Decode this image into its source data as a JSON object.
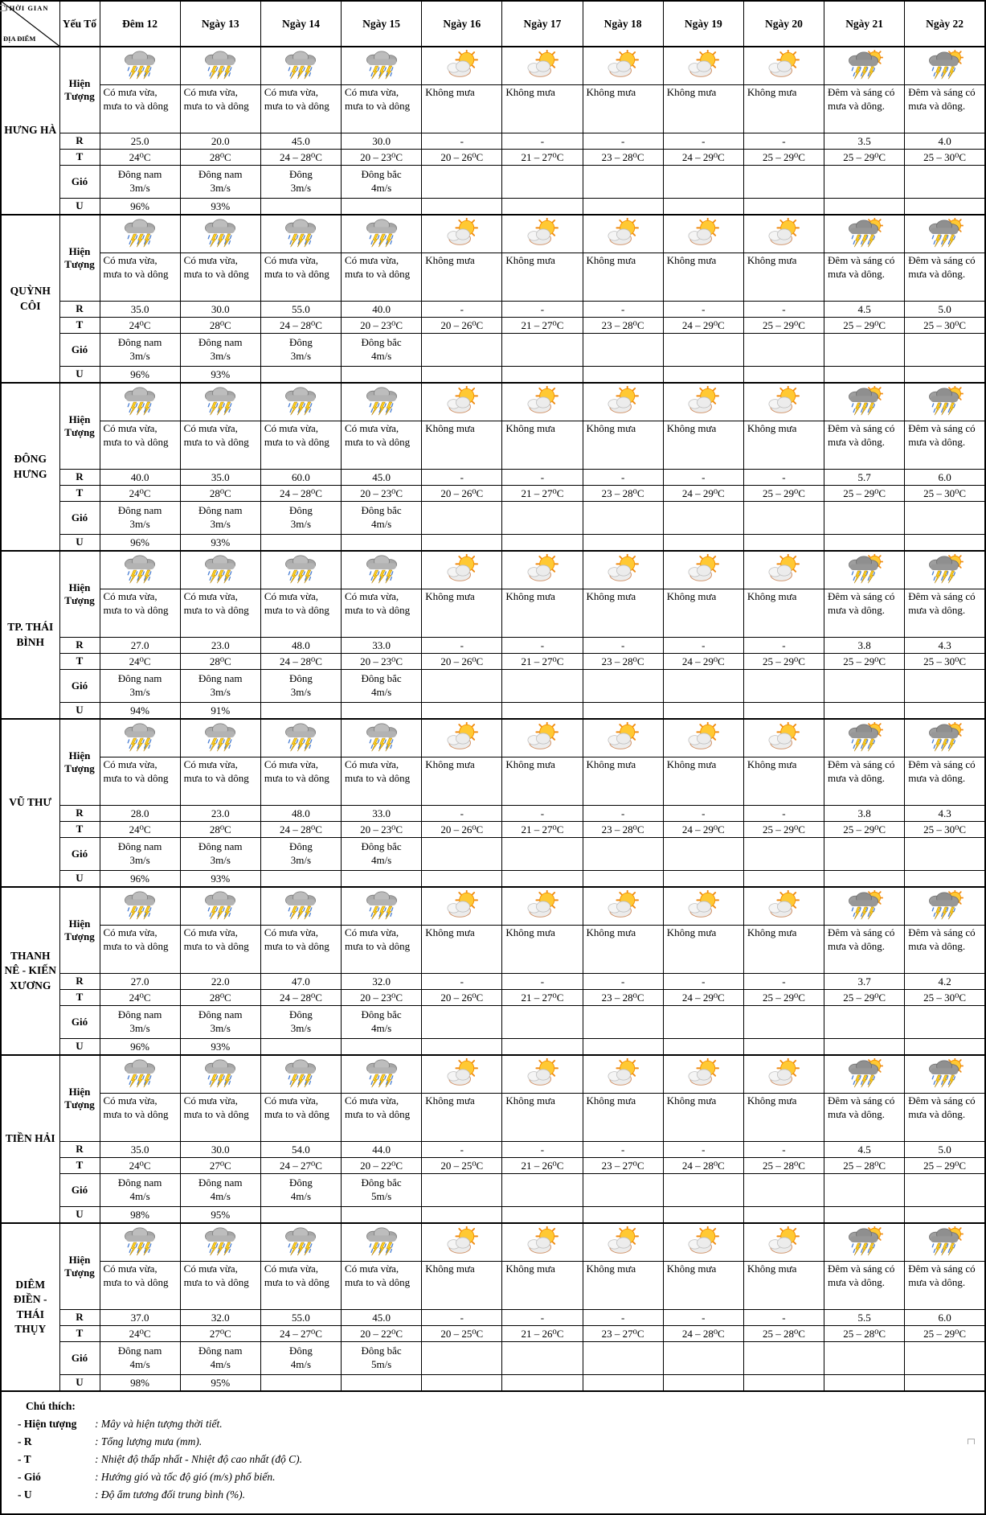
{
  "header": {
    "corner_top": "THỜI GIAN",
    "corner_bottom": "ĐỊA ĐIỂM",
    "factor_label": "Yếu Tố",
    "days": [
      "Đêm 12",
      "Ngày 13",
      "Ngày 14",
      "Ngày 15",
      "Ngày 16",
      "Ngày 17",
      "Ngày 18",
      "Ngày 19",
      "Ngày 20",
      "Ngày 21",
      "Ngày 22"
    ]
  },
  "row_labels": {
    "phenomenon": "Hiện Tượng",
    "rain": "R",
    "temp": "T",
    "wind": "Gió",
    "humidity": "U"
  },
  "icons": [
    "storm",
    "storm",
    "storm",
    "storm",
    "sun-cloud",
    "sun-cloud",
    "sun-cloud",
    "sun-cloud",
    "sun-cloud",
    "storm-sun",
    "storm-sun"
  ],
  "phenomena": [
    "Có mưa vừa, mưa to và dông",
    "Có mưa vừa, mưa to và dông",
    "Có mưa vừa, mưa to và dông",
    "Có mưa vừa, mưa to và dông",
    "Không mưa",
    "Không mưa",
    "Không mưa",
    "Không mưa",
    "Không mưa",
    "Đêm và sáng có mưa và dông.",
    "Đêm và sáng có mưa và dông."
  ],
  "locations": [
    {
      "name": "HƯNG HÀ",
      "rain": [
        "25.0",
        "20.0",
        "45.0",
        "30.0",
        "-",
        "-",
        "-",
        "-",
        "-",
        "3.5",
        "4.0"
      ],
      "temp": [
        "24⁰C",
        "28⁰C",
        "24 – 28⁰C",
        "20 – 23⁰C",
        "20 – 26⁰C",
        "21 – 27⁰C",
        "23 – 28⁰C",
        "24 – 29⁰C",
        "25 – 29⁰C",
        "25 – 29⁰C",
        "25 – 30⁰C"
      ],
      "wind": [
        "Đông nam\n3m/s",
        "Đông nam\n3m/s",
        "Đông\n3m/s",
        "Đông bắc\n4m/s",
        "",
        "",
        "",
        "",
        "",
        "",
        ""
      ],
      "humidity": [
        "96%",
        "93%",
        "",
        "",
        "",
        "",
        "",
        "",
        "",
        "",
        ""
      ]
    },
    {
      "name": "QUỲNH CÔI",
      "rain": [
        "35.0",
        "30.0",
        "55.0",
        "40.0",
        "-",
        "-",
        "-",
        "-",
        "-",
        "4.5",
        "5.0"
      ],
      "temp": [
        "24⁰C",
        "28⁰C",
        "24 – 28⁰C",
        "20 – 23⁰C",
        "20 – 26⁰C",
        "21 – 27⁰C",
        "23 – 28⁰C",
        "24 – 29⁰C",
        "25 – 29⁰C",
        "25 – 29⁰C",
        "25 – 30⁰C"
      ],
      "wind": [
        "Đông nam\n3m/s",
        "Đông nam\n3m/s",
        "Đông\n3m/s",
        "Đông bắc\n4m/s",
        "",
        "",
        "",
        "",
        "",
        "",
        ""
      ],
      "humidity": [
        "96%",
        "93%",
        "",
        "",
        "",
        "",
        "",
        "",
        "",
        "",
        ""
      ]
    },
    {
      "name": "ĐÔNG HƯNG",
      "rain": [
        "40.0",
        "35.0",
        "60.0",
        "45.0",
        "-",
        "-",
        "-",
        "-",
        "-",
        "5.7",
        "6.0"
      ],
      "temp": [
        "24⁰C",
        "28⁰C",
        "24 – 28⁰C",
        "20 – 23⁰C",
        "20 – 26⁰C",
        "21 – 27⁰C",
        "23 – 28⁰C",
        "24 – 29⁰C",
        "25 – 29⁰C",
        "25 – 29⁰C",
        "25 – 30⁰C"
      ],
      "wind": [
        "Đông nam\n3m/s",
        "Đông nam\n3m/s",
        "Đông\n3m/s",
        "Đông bắc\n4m/s",
        "",
        "",
        "",
        "",
        "",
        "",
        ""
      ],
      "humidity": [
        "96%",
        "93%",
        "",
        "",
        "",
        "",
        "",
        "",
        "",
        "",
        ""
      ]
    },
    {
      "name": "TP. THÁI BÌNH",
      "rain": [
        "27.0",
        "23.0",
        "48.0",
        "33.0",
        "-",
        "-",
        "-",
        "-",
        "-",
        "3.8",
        "4.3"
      ],
      "temp": [
        "24⁰C",
        "28⁰C",
        "24 – 28⁰C",
        "20 – 23⁰C",
        "20 – 26⁰C",
        "21 – 27⁰C",
        "23 – 28⁰C",
        "24 – 29⁰C",
        "25 – 29⁰C",
        "25 – 29⁰C",
        "25 – 30⁰C"
      ],
      "wind": [
        "Đông nam\n3m/s",
        "Đông nam\n3m/s",
        "Đông\n3m/s",
        "Đông bắc\n4m/s",
        "",
        "",
        "",
        "",
        "",
        "",
        ""
      ],
      "humidity": [
        "94%",
        "91%",
        "",
        "",
        "",
        "",
        "",
        "",
        "",
        "",
        ""
      ]
    },
    {
      "name": "VŨ THƯ",
      "rain": [
        "28.0",
        "23.0",
        "48.0",
        "33.0",
        "-",
        "-",
        "-",
        "-",
        "-",
        "3.8",
        "4.3"
      ],
      "temp": [
        "24⁰C",
        "28⁰C",
        "24 – 28⁰C",
        "20 – 23⁰C",
        "20 – 26⁰C",
        "21 – 27⁰C",
        "23 – 28⁰C",
        "24 – 29⁰C",
        "25 – 29⁰C",
        "25 – 29⁰C",
        "25 – 30⁰C"
      ],
      "wind": [
        "Đông nam\n3m/s",
        "Đông nam\n3m/s",
        "Đông\n3m/s",
        "Đông bắc\n4m/s",
        "",
        "",
        "",
        "",
        "",
        "",
        ""
      ],
      "humidity": [
        "96%",
        "93%",
        "",
        "",
        "",
        "",
        "",
        "",
        "",
        "",
        ""
      ]
    },
    {
      "name": "THANH NÊ - KIẾN XƯƠNG",
      "rain": [
        "27.0",
        "22.0",
        "47.0",
        "32.0",
        "-",
        "-",
        "-",
        "-",
        "-",
        "3.7",
        "4.2"
      ],
      "temp": [
        "24⁰C",
        "28⁰C",
        "24 – 28⁰C",
        "20 – 23⁰C",
        "20 – 26⁰C",
        "21 – 27⁰C",
        "23 – 28⁰C",
        "24 – 29⁰C",
        "25 – 29⁰C",
        "25 – 29⁰C",
        "25 – 30⁰C"
      ],
      "wind": [
        "Đông nam\n3m/s",
        "Đông nam\n3m/s",
        "Đông\n3m/s",
        "Đông bắc\n4m/s",
        "",
        "",
        "",
        "",
        "",
        "",
        ""
      ],
      "humidity": [
        "96%",
        "93%",
        "",
        "",
        "",
        "",
        "",
        "",
        "",
        "",
        ""
      ]
    },
    {
      "name": "TIỀN HẢI",
      "rain": [
        "35.0",
        "30.0",
        "54.0",
        "44.0",
        "-",
        "-",
        "-",
        "-",
        "-",
        "4.5",
        "5.0"
      ],
      "temp": [
        "24⁰C",
        "27⁰C",
        "24 – 27⁰C",
        "20 – 22⁰C",
        "20 – 25⁰C",
        "21 – 26⁰C",
        "23 – 27⁰C",
        "24 – 28⁰C",
        "25 – 28⁰C",
        "25 – 28⁰C",
        "25 – 29⁰C"
      ],
      "wind": [
        "Đông nam\n4m/s",
        "Đông nam\n4m/s",
        "Đông\n4m/s",
        "Đông bắc\n5m/s",
        "",
        "",
        "",
        "",
        "",
        "",
        ""
      ],
      "humidity": [
        "98%",
        "95%",
        "",
        "",
        "",
        "",
        "",
        "",
        "",
        "",
        ""
      ]
    },
    {
      "name": "DIÊM ĐIỀN - THÁI THỤY",
      "rain": [
        "37.0",
        "32.0",
        "55.0",
        "45.0",
        "-",
        "-",
        "-",
        "-",
        "-",
        "5.5",
        "6.0"
      ],
      "temp": [
        "24⁰C",
        "27⁰C",
        "24 – 27⁰C",
        "20 – 22⁰C",
        "20 – 25⁰C",
        "21 – 26⁰C",
        "23 – 27⁰C",
        "24 – 28⁰C",
        "25 – 28⁰C",
        "25 – 28⁰C",
        "25 – 29⁰C"
      ],
      "wind": [
        "Đông nam\n4m/s",
        "Đông nam\n4m/s",
        "Đông\n4m/s",
        "Đông bắc\n5m/s",
        "",
        "",
        "",
        "",
        "",
        "",
        ""
      ],
      "humidity": [
        "98%",
        "95%",
        "",
        "",
        "",
        "",
        "",
        "",
        "",
        "",
        ""
      ]
    }
  ],
  "legend": {
    "title": "Chú thích:",
    "items": [
      {
        "term": "- Hiện tượng",
        "desc": ": Mây và hiện tượng thời tiết."
      },
      {
        "term": "- R",
        "desc": ": Tổng lượng mưa (mm)."
      },
      {
        "term": "- T",
        "desc": ": Nhiệt độ thấp nhất - Nhiệt độ cao nhất (độ C)."
      },
      {
        "term": "- Gió",
        "desc": ": Hướng gió và tốc độ gió (m/s) phổ biến."
      },
      {
        "term": "- U",
        "desc": ": Độ ẩm tương đối trung bình (%)."
      }
    ]
  },
  "colors": {
    "border": "#000000",
    "storm_cloud_gray": "#b3b3b3",
    "dark_cloud_gray": "#979797",
    "sun_yellow": "#ffc933",
    "sun_ray_orange": "#ef8b13",
    "lightning_yellow": "#ffd21f",
    "rain_blue": "#4a7fd4"
  }
}
